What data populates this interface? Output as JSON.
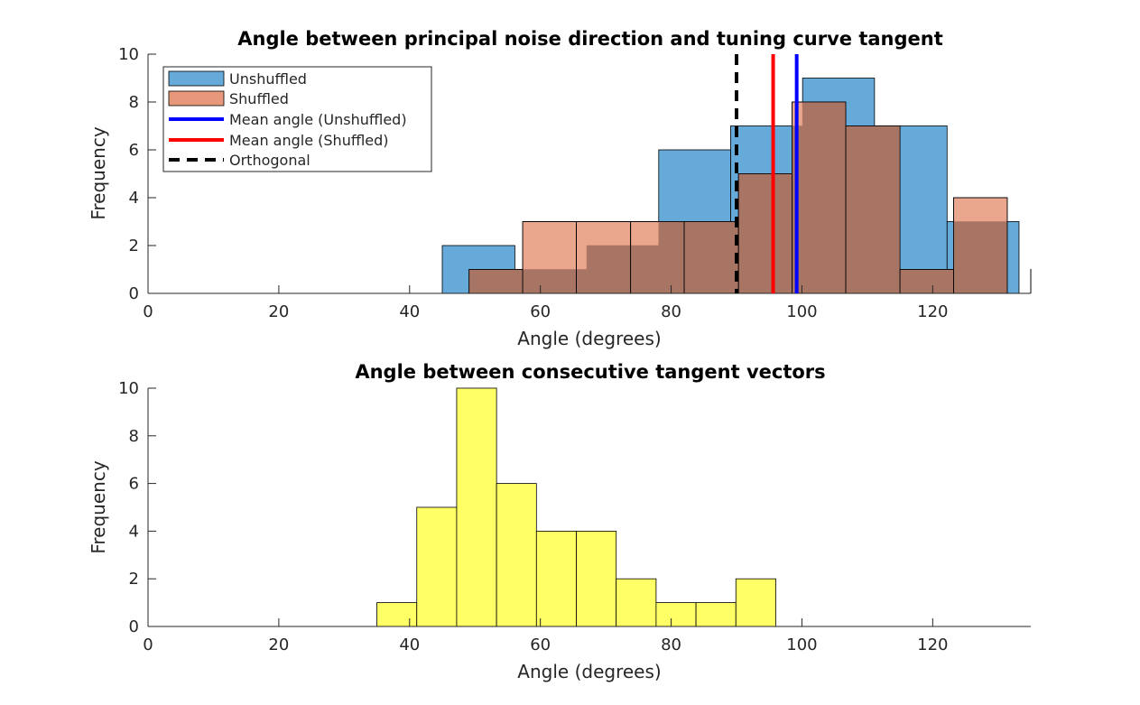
{
  "chart_data": [
    {
      "type": "bar",
      "subtype": "histogram",
      "title": "Angle between principal noise direction and tuning curve tangent",
      "xlabel": "Angle (degrees)",
      "ylabel": "Frequency",
      "xlim": [
        0,
        135
      ],
      "ylim": [
        0,
        10
      ],
      "xticks": [
        0,
        20,
        40,
        60,
        80,
        100,
        120
      ],
      "yticks": [
        0,
        2,
        4,
        6,
        8,
        10
      ],
      "grid": false,
      "legend": "top-left",
      "series": [
        {
          "name": "Unshuffled",
          "color": "#0072BD",
          "face_color": "#66AADA",
          "bins": [
            {
              "x0": 45.0,
              "x1": 56.1,
              "count": 2
            },
            {
              "x0": 56.1,
              "x1": 67.1,
              "count": 1
            },
            {
              "x0": 67.1,
              "x1": 78.1,
              "count": 2
            },
            {
              "x0": 78.1,
              "x1": 89.1,
              "count": 6
            },
            {
              "x0": 89.1,
              "x1": 100.1,
              "count": 7
            },
            {
              "x0": 100.1,
              "x1": 111.1,
              "count": 9
            },
            {
              "x0": 111.1,
              "x1": 122.2,
              "count": 7
            },
            {
              "x0": 122.2,
              "x1": 133.2,
              "count": 3
            }
          ]
        },
        {
          "name": "Shuffled",
          "color": "#D95319",
          "face_color": "#E8987A",
          "bins": [
            {
              "x0": 49.1,
              "x1": 57.3,
              "count": 1
            },
            {
              "x0": 57.3,
              "x1": 65.5,
              "count": 3
            },
            {
              "x0": 65.5,
              "x1": 73.8,
              "count": 3
            },
            {
              "x0": 73.8,
              "x1": 82.0,
              "count": 3
            },
            {
              "x0": 82.0,
              "x1": 90.3,
              "count": 3
            },
            {
              "x0": 90.3,
              "x1": 98.5,
              "count": 5
            },
            {
              "x0": 98.5,
              "x1": 106.7,
              "count": 8
            },
            {
              "x0": 106.7,
              "x1": 115.0,
              "count": 7
            },
            {
              "x0": 115.0,
              "x1": 123.2,
              "count": 1
            },
            {
              "x0": 123.2,
              "x1": 131.4,
              "count": 4
            }
          ]
        }
      ],
      "overlap_color": "#A87565",
      "reference_lines": [
        {
          "name": "Mean angle (Unshuffled)",
          "x": 99.2,
          "color": "#0000FF",
          "style": "solid"
        },
        {
          "name": "Mean angle (Shuffled)",
          "x": 95.6,
          "color": "#FF0000",
          "style": "solid"
        },
        {
          "name": "Orthogonal",
          "x": 90,
          "color": "#000000",
          "style": "dashed"
        }
      ],
      "legend_entries": [
        "Unshuffled",
        "Shuffled",
        "Mean angle (Unshuffled)",
        "Mean angle (Shuffled)",
        "Orthogonal"
      ]
    },
    {
      "type": "bar",
      "subtype": "histogram",
      "title": "Angle between consecutive tangent vectors",
      "xlabel": "Angle (degrees)",
      "ylabel": "Frequency",
      "xlim": [
        0,
        135
      ],
      "ylim": [
        0,
        10
      ],
      "xticks": [
        0,
        20,
        40,
        60,
        80,
        100,
        120
      ],
      "yticks": [
        0,
        2,
        4,
        6,
        8,
        10
      ],
      "grid": false,
      "series": [
        {
          "color": "#FFFF66",
          "bins": [
            {
              "x0": 35.0,
              "x1": 41.1,
              "count": 1
            },
            {
              "x0": 41.1,
              "x1": 47.2,
              "count": 5
            },
            {
              "x0": 47.2,
              "x1": 53.3,
              "count": 10
            },
            {
              "x0": 53.3,
              "x1": 59.4,
              "count": 6
            },
            {
              "x0": 59.4,
              "x1": 65.5,
              "count": 4
            },
            {
              "x0": 65.5,
              "x1": 71.6,
              "count": 4
            },
            {
              "x0": 71.6,
              "x1": 77.7,
              "count": 2
            },
            {
              "x0": 77.7,
              "x1": 83.8,
              "count": 1
            },
            {
              "x0": 83.8,
              "x1": 89.9,
              "count": 1
            },
            {
              "x0": 89.9,
              "x1": 96.0,
              "count": 2
            }
          ]
        }
      ]
    }
  ]
}
